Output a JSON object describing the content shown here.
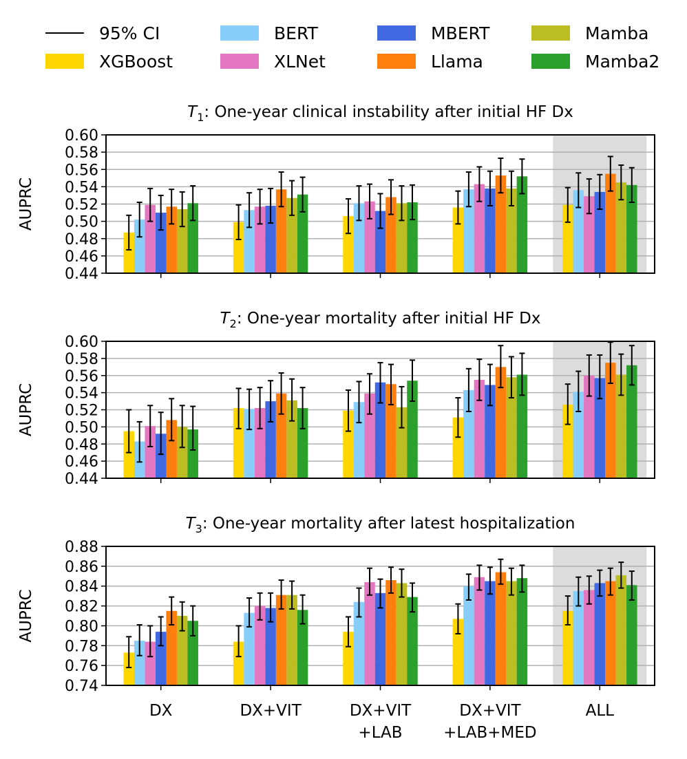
{
  "legend": {
    "ci_label": "95% CI",
    "items": [
      {
        "name": "XGBoost",
        "color": "#ffd700"
      },
      {
        "name": "BERT",
        "color": "#87cefa"
      },
      {
        "name": "XLNet",
        "color": "#e377c2"
      },
      {
        "name": "MBERT",
        "color": "#4169e1"
      },
      {
        "name": "Llama",
        "color": "#ff7f0e"
      },
      {
        "name": "Mamba",
        "color": "#bcbd22"
      },
      {
        "name": "Mamba2",
        "color": "#2ca02c"
      }
    ]
  },
  "chart_data": [
    {
      "type": "bar",
      "title_italic": "T",
      "title_sub": "1",
      "title_rest": ": One-year clinical instability after initial HF Dx",
      "ylabel": "AUPRC",
      "ylim": [
        0.44,
        0.6
      ],
      "yticks": [
        "0.44",
        "0.46",
        "0.48",
        "0.50",
        "0.52",
        "0.54",
        "0.56",
        "0.58",
        "0.60"
      ],
      "grid": true,
      "highlight_category": "ALL",
      "categories": [
        "DX",
        "DX+VIT",
        "DX+VIT\n+LAB",
        "DX+VIT\n+LAB+MED",
        "ALL"
      ],
      "series": [
        {
          "name": "XGBoost",
          "values": [
            0.487,
            0.499,
            0.506,
            0.516,
            0.519
          ],
          "ci_low": [
            0.467,
            0.479,
            0.486,
            0.497,
            0.499
          ],
          "ci_high": [
            0.507,
            0.519,
            0.526,
            0.535,
            0.539
          ]
        },
        {
          "name": "BERT",
          "values": [
            0.502,
            0.513,
            0.521,
            0.537,
            0.536
          ],
          "ci_low": [
            0.482,
            0.493,
            0.501,
            0.517,
            0.516
          ],
          "ci_high": [
            0.522,
            0.533,
            0.541,
            0.557,
            0.556
          ]
        },
        {
          "name": "XLNet",
          "values": [
            0.519,
            0.517,
            0.523,
            0.543,
            0.529
          ],
          "ci_low": [
            0.5,
            0.497,
            0.503,
            0.523,
            0.509
          ],
          "ci_high": [
            0.538,
            0.537,
            0.543,
            0.563,
            0.549
          ]
        },
        {
          "name": "MBERT",
          "values": [
            0.51,
            0.518,
            0.512,
            0.538,
            0.534
          ],
          "ci_low": [
            0.49,
            0.498,
            0.492,
            0.518,
            0.514
          ],
          "ci_high": [
            0.53,
            0.538,
            0.532,
            0.558,
            0.554
          ]
        },
        {
          "name": "Llama",
          "values": [
            0.517,
            0.537,
            0.528,
            0.553,
            0.555
          ],
          "ci_low": [
            0.497,
            0.517,
            0.508,
            0.533,
            0.535
          ],
          "ci_high": [
            0.537,
            0.557,
            0.548,
            0.573,
            0.575
          ]
        },
        {
          "name": "Mamba",
          "values": [
            0.514,
            0.527,
            0.521,
            0.538,
            0.545
          ],
          "ci_low": [
            0.494,
            0.507,
            0.501,
            0.518,
            0.525
          ],
          "ci_high": [
            0.534,
            0.547,
            0.541,
            0.558,
            0.565
          ]
        },
        {
          "name": "Mamba2",
          "values": [
            0.521,
            0.531,
            0.522,
            0.552,
            0.542
          ],
          "ci_low": [
            0.501,
            0.511,
            0.502,
            0.532,
            0.522
          ],
          "ci_high": [
            0.541,
            0.551,
            0.542,
            0.572,
            0.562
          ]
        }
      ]
    },
    {
      "type": "bar",
      "title_italic": "T",
      "title_sub": "2",
      "title_rest": ": One-year mortality after initial HF Dx",
      "ylabel": "AUPRC",
      "ylim": [
        0.44,
        0.6
      ],
      "yticks": [
        "0.44",
        "0.46",
        "0.48",
        "0.50",
        "0.52",
        "0.54",
        "0.56",
        "0.58",
        "0.60"
      ],
      "grid": true,
      "highlight_category": "ALL",
      "categories": [
        "DX",
        "DX+VIT",
        "DX+VIT\n+LAB",
        "DX+VIT\n+LAB+MED",
        "ALL"
      ],
      "series": [
        {
          "name": "XGBoost",
          "values": [
            0.495,
            0.522,
            0.519,
            0.511,
            0.526
          ],
          "ci_low": [
            0.47,
            0.498,
            0.495,
            0.488,
            0.503
          ],
          "ci_high": [
            0.52,
            0.545,
            0.543,
            0.534,
            0.55
          ]
        },
        {
          "name": "BERT",
          "values": [
            0.483,
            0.521,
            0.529,
            0.543,
            0.541
          ],
          "ci_low": [
            0.459,
            0.497,
            0.505,
            0.518,
            0.518
          ],
          "ci_high": [
            0.506,
            0.544,
            0.553,
            0.568,
            0.565
          ]
        },
        {
          "name": "XLNet",
          "values": [
            0.501,
            0.522,
            0.539,
            0.555,
            0.56
          ],
          "ci_low": [
            0.477,
            0.498,
            0.515,
            0.531,
            0.536
          ],
          "ci_high": [
            0.525,
            0.546,
            0.562,
            0.579,
            0.584
          ]
        },
        {
          "name": "MBERT",
          "values": [
            0.492,
            0.53,
            0.552,
            0.549,
            0.557
          ],
          "ci_low": [
            0.468,
            0.506,
            0.528,
            0.525,
            0.533
          ],
          "ci_high": [
            0.517,
            0.554,
            0.575,
            0.573,
            0.584
          ]
        },
        {
          "name": "Llama",
          "values": [
            0.508,
            0.539,
            0.55,
            0.57,
            0.575
          ],
          "ci_low": [
            0.484,
            0.515,
            0.526,
            0.546,
            0.551
          ],
          "ci_high": [
            0.533,
            0.563,
            0.573,
            0.595,
            0.599
          ]
        },
        {
          "name": "Mamba",
          "values": [
            0.5,
            0.531,
            0.523,
            0.558,
            0.561
          ],
          "ci_low": [
            0.476,
            0.507,
            0.499,
            0.534,
            0.537
          ],
          "ci_high": [
            0.525,
            0.556,
            0.547,
            0.582,
            0.585
          ]
        },
        {
          "name": "Mamba2",
          "values": [
            0.497,
            0.522,
            0.554,
            0.561,
            0.572
          ],
          "ci_low": [
            0.473,
            0.498,
            0.53,
            0.537,
            0.549
          ],
          "ci_high": [
            0.524,
            0.546,
            0.578,
            0.586,
            0.595
          ]
        }
      ]
    },
    {
      "type": "bar",
      "title_italic": "T",
      "title_sub": "3",
      "title_rest": ": One-year mortality after latest hospitalization",
      "ylabel": "AUPRC",
      "ylim": [
        0.74,
        0.88
      ],
      "yticks": [
        "0.74",
        "0.76",
        "0.78",
        "0.80",
        "0.82",
        "0.84",
        "0.86",
        "0.88"
      ],
      "grid": true,
      "highlight_category": "ALL",
      "categories": [
        "DX",
        "DX+VIT",
        "DX+VIT\n+LAB",
        "DX+VIT\n+LAB+MED",
        "ALL"
      ],
      "series": [
        {
          "name": "XGBoost",
          "values": [
            0.773,
            0.784,
            0.794,
            0.807,
            0.815
          ],
          "ci_low": [
            0.758,
            0.769,
            0.779,
            0.792,
            0.801
          ],
          "ci_high": [
            0.789,
            0.8,
            0.809,
            0.822,
            0.83
          ]
        },
        {
          "name": "BERT",
          "values": [
            0.785,
            0.813,
            0.824,
            0.84,
            0.835
          ],
          "ci_low": [
            0.77,
            0.799,
            0.809,
            0.826,
            0.82
          ],
          "ci_high": [
            0.801,
            0.828,
            0.838,
            0.852,
            0.849
          ]
        },
        {
          "name": "XLNet",
          "values": [
            0.784,
            0.82,
            0.844,
            0.849,
            0.836
          ],
          "ci_low": [
            0.769,
            0.806,
            0.831,
            0.836,
            0.822
          ],
          "ci_high": [
            0.8,
            0.833,
            0.858,
            0.861,
            0.85
          ]
        },
        {
          "name": "MBERT",
          "values": [
            0.794,
            0.818,
            0.833,
            0.845,
            0.843
          ],
          "ci_low": [
            0.78,
            0.804,
            0.818,
            0.832,
            0.83
          ],
          "ci_high": [
            0.809,
            0.833,
            0.847,
            0.859,
            0.856
          ]
        },
        {
          "name": "Llama",
          "values": [
            0.815,
            0.831,
            0.846,
            0.854,
            0.845
          ],
          "ci_low": [
            0.801,
            0.817,
            0.833,
            0.842,
            0.831
          ],
          "ci_high": [
            0.829,
            0.846,
            0.859,
            0.867,
            0.858
          ]
        },
        {
          "name": "Mamba",
          "values": [
            0.81,
            0.831,
            0.843,
            0.845,
            0.851
          ],
          "ci_low": [
            0.795,
            0.817,
            0.829,
            0.831,
            0.838
          ],
          "ci_high": [
            0.824,
            0.845,
            0.857,
            0.858,
            0.864
          ]
        },
        {
          "name": "Mamba2",
          "values": [
            0.805,
            0.816,
            0.829,
            0.848,
            0.841
          ],
          "ci_low": [
            0.79,
            0.802,
            0.814,
            0.834,
            0.826
          ],
          "ci_high": [
            0.82,
            0.831,
            0.843,
            0.861,
            0.855
          ]
        }
      ]
    }
  ]
}
